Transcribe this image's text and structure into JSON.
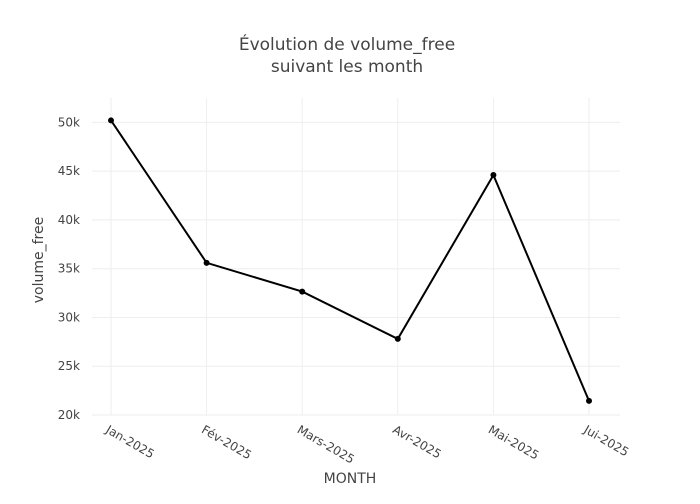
{
  "chart_data": {
    "type": "line",
    "title_lines": [
      "Évolution de volume_free",
      "suivant les month"
    ],
    "xlabel": "MONTH",
    "ylabel": "volume_free",
    "categories": [
      "Jan-2025",
      "Fév-2025",
      "Mars-2025",
      "Avr-2025",
      "Mai-2025",
      "Jui-2025"
    ],
    "series": [
      {
        "values": [
          50200,
          35600,
          32650,
          27800,
          44600,
          21450
        ],
        "color": "#000000"
      }
    ],
    "y_ticks": [
      20000,
      25000,
      30000,
      35000,
      40000,
      45000,
      50000
    ],
    "y_tick_labels": [
      "20k",
      "25k",
      "30k",
      "35k",
      "40k",
      "45k",
      "50k"
    ],
    "ylim": [
      20000,
      52500
    ],
    "grid": true,
    "legend": "none"
  }
}
